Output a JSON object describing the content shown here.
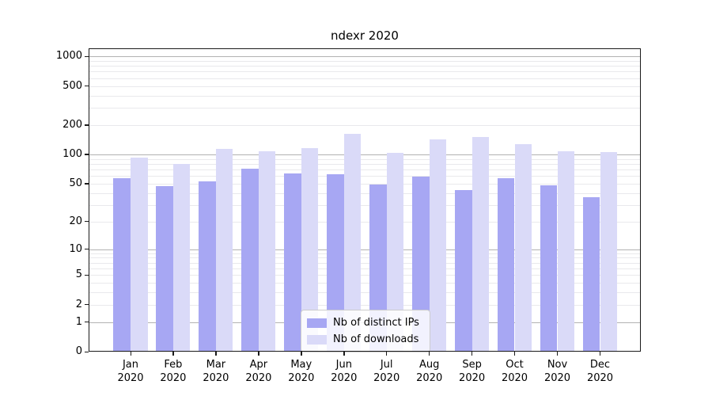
{
  "chart_data": {
    "type": "bar",
    "title": "ndexr 2020",
    "categories": [
      "Jan",
      "Feb",
      "Mar",
      "Apr",
      "May",
      "Jun",
      "Jul",
      "Aug",
      "Sep",
      "Oct",
      "Nov",
      "Dec"
    ],
    "x_tick_second_line": "2020",
    "series": [
      {
        "name": "Nb of distinct IPs",
        "color": "#a7a7f3",
        "values": [
          57,
          47,
          53,
          71,
          64,
          63,
          49,
          59,
          43,
          57,
          48,
          36
        ]
      },
      {
        "name": "Nb of downloads",
        "color": "#dadaf8",
        "values": [
          92,
          80,
          113,
          108,
          115,
          161,
          104,
          143,
          151,
          127,
          108,
          106
        ]
      }
    ],
    "y_axis": {
      "scale": "log10(1+y)",
      "ticks": [
        0,
        1,
        2,
        5,
        10,
        20,
        50,
        100,
        200,
        500,
        1000
      ],
      "max": 1206
    },
    "x_axis": {
      "label_year": "2020"
    },
    "legend": {
      "position": "lower-center"
    },
    "grid": {
      "major_values": [
        1,
        10,
        100,
        1000
      ],
      "minor_decades": [
        1,
        10,
        100
      ],
      "minor_multipliers": [
        2,
        3,
        4,
        5,
        6,
        7,
        8,
        9
      ],
      "major_color": "#b2b2b2",
      "minor_color": "#e9e9ec"
    }
  }
}
